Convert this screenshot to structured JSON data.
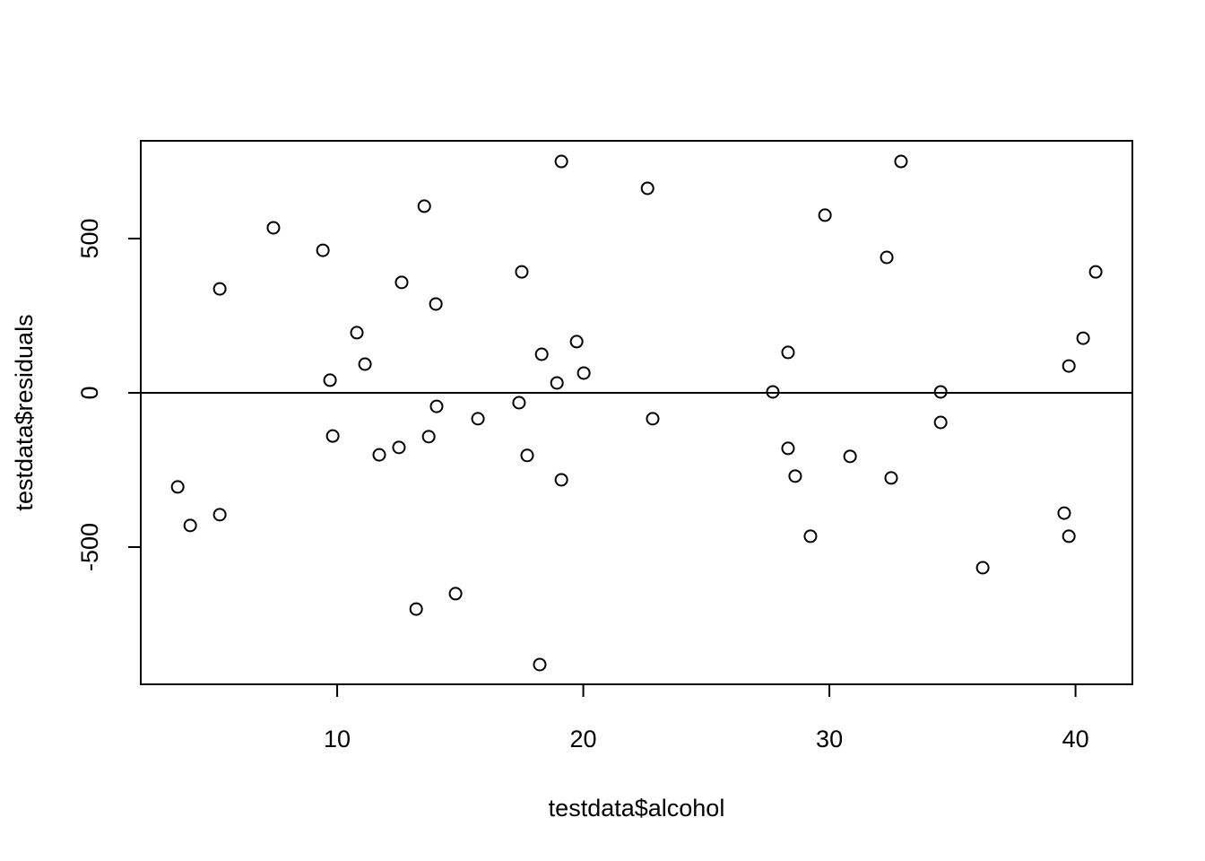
{
  "chart_data": {
    "type": "scatter",
    "x_label": "testdata$alcohol",
    "y_label": "testdata$residuals",
    "x": [
      3.52,
      4.03,
      5.23,
      5.23,
      7.41,
      9.42,
      9.71,
      9.82,
      10.8,
      11.13,
      11.71,
      12.51,
      12.62,
      13.21,
      13.54,
      13.72,
      14.01,
      14.04,
      14.81,
      15.72,
      17.39,
      17.5,
      17.72,
      18.23,
      18.31,
      18.93,
      19.11,
      19.11,
      19.73,
      20.02,
      22.61,
      22.82,
      27.7,
      28.32,
      28.32,
      28.61,
      29.23,
      29.82,
      30.84,
      32.33,
      32.51,
      32.91,
      34.52,
      34.52,
      36.23,
      39.54,
      39.73,
      39.73,
      40.31,
      40.82
    ],
    "values": [
      -305,
      -430,
      337,
      -395,
      535,
      462,
      41,
      -140,
      195,
      93,
      -201,
      -177,
      358,
      -701,
      605,
      -142,
      288,
      -44,
      -651,
      -84,
      -32,
      392,
      -203,
      -881,
      125,
      32,
      750,
      -282,
      166,
      64,
      663,
      -84,
      3,
      131,
      -180,
      -270,
      -465,
      576,
      -206,
      439,
      -276,
      750,
      3,
      -96,
      -567,
      -390,
      87,
      -465,
      177,
      392
    ],
    "color": "#000000",
    "reference_line": 0,
    "xlim": [
      2.02,
      42.31
    ],
    "xticks": [
      10,
      20,
      30,
      40
    ],
    "ylim": [
      -945,
      817
    ],
    "yticks": [
      -500,
      0,
      500
    ]
  }
}
